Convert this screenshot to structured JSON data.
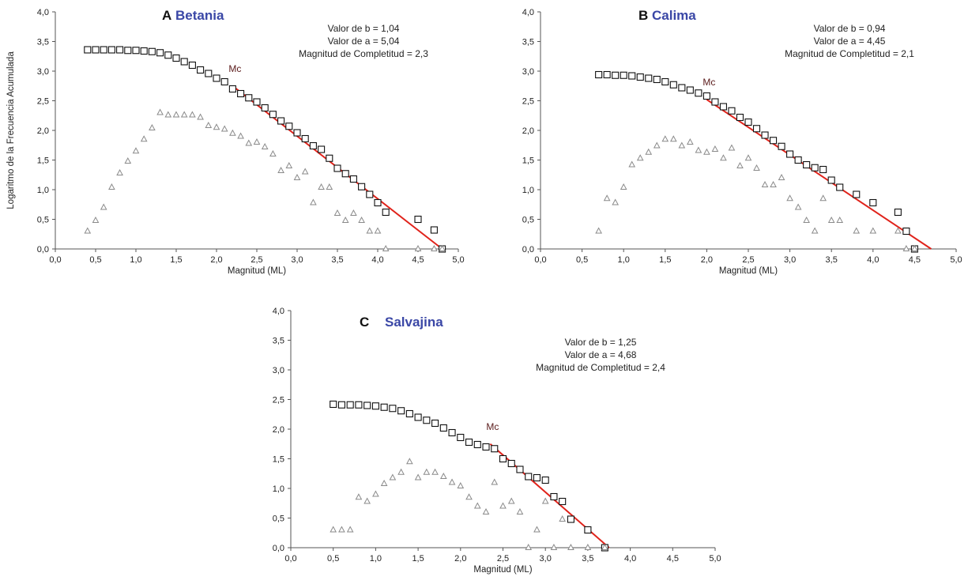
{
  "colors": {
    "fit_line": "#e0231b",
    "panel_name": "#3a47a6",
    "cumulative_marker": "#111111",
    "incremental_marker": "#8a8a8a"
  },
  "chart_data": [
    {
      "type": "scatter",
      "panel_letter": "A",
      "title": "Betania",
      "xlabel": "Magnitud (ML)",
      "ylabel": "Logaritmo de la Frecuencia Acumulada",
      "xlim": [
        0,
        5
      ],
      "ylim": [
        0,
        4
      ],
      "xticks": [
        "0,0",
        "0,5",
        "1,0",
        "1,5",
        "2,0",
        "2,5",
        "3,0",
        "3,5",
        "4,0",
        "4,5",
        "5,0"
      ],
      "yticks": [
        "0,0",
        "0,5",
        "1,0",
        "1,5",
        "2,0",
        "2,5",
        "3,0",
        "3,5",
        "4,0"
      ],
      "stats": [
        "Valor de b = 1,04",
        "Valor de a = 5,04",
        "Magnitud de Completitud = 2,3"
      ],
      "mc_label": "Mc",
      "grid": false,
      "series": [
        {
          "marker": "square",
          "x": [
            0.4,
            0.5,
            0.6,
            0.7,
            0.8,
            0.9,
            1.0,
            1.1,
            1.2,
            1.3,
            1.4,
            1.5,
            1.6,
            1.7,
            1.8,
            1.9,
            2.0,
            2.1,
            2.2,
            2.3,
            2.4,
            2.5,
            2.6,
            2.7,
            2.8,
            2.9,
            3.0,
            3.1,
            3.2,
            3.3,
            3.4,
            3.5,
            3.6,
            3.7,
            3.8,
            3.9,
            4.0,
            4.1,
            4.5,
            4.7,
            4.8
          ],
          "y": [
            3.36,
            3.36,
            3.36,
            3.36,
            3.36,
            3.35,
            3.35,
            3.34,
            3.33,
            3.31,
            3.27,
            3.22,
            3.16,
            3.1,
            3.02,
            2.96,
            2.88,
            2.82,
            2.7,
            2.62,
            2.55,
            2.48,
            2.38,
            2.27,
            2.16,
            2.07,
            1.96,
            1.86,
            1.74,
            1.68,
            1.53,
            1.36,
            1.27,
            1.18,
            1.05,
            0.92,
            0.78,
            0.62,
            0.5,
            0.32,
            0.0
          ]
        },
        {
          "marker": "triangle",
          "x": [
            0.4,
            0.5,
            0.6,
            0.7,
            0.8,
            0.9,
            1.0,
            1.1,
            1.2,
            1.3,
            1.4,
            1.5,
            1.6,
            1.7,
            1.8,
            1.9,
            2.0,
            2.1,
            2.2,
            2.3,
            2.4,
            2.5,
            2.6,
            2.7,
            2.8,
            2.9,
            3.0,
            3.1,
            3.2,
            3.3,
            3.4,
            3.5,
            3.6,
            3.7,
            3.8,
            3.9,
            4.0,
            4.1,
            4.5,
            4.7,
            4.8
          ],
          "y": [
            0.3,
            0.48,
            0.7,
            1.04,
            1.28,
            1.48,
            1.65,
            1.85,
            2.04,
            2.3,
            2.26,
            2.26,
            2.26,
            2.26,
            2.22,
            2.08,
            2.05,
            2.02,
            1.95,
            1.9,
            1.78,
            1.8,
            1.72,
            1.6,
            1.32,
            1.4,
            1.2,
            1.3,
            0.78,
            1.04,
            1.04,
            0.6,
            0.48,
            0.6,
            0.48,
            0.3,
            0.3,
            0.0,
            0.0,
            0.0,
            0.0
          ]
        }
      ],
      "fit_line": {
        "x": [
          2.2,
          4.8
        ],
        "y": [
          2.75,
          0.0
        ]
      }
    },
    {
      "type": "scatter",
      "panel_letter": "B",
      "title": "Calima",
      "xlabel": "Magnitud (ML)",
      "ylabel": "",
      "xlim": [
        0,
        5
      ],
      "ylim": [
        0,
        4
      ],
      "xticks": [
        "0,0",
        "0,5",
        "1,0",
        "1,5",
        "2,0",
        "2,5",
        "3,0",
        "3,5",
        "4,0",
        "4,5",
        "5,0"
      ],
      "yticks": [
        "0,0",
        "0,5",
        "1,0",
        "1,5",
        "2,0",
        "2,5",
        "3,0",
        "3,5",
        "4,0"
      ],
      "stats": [
        "Valor de b = 0,94",
        "Valor de a = 4,45",
        "Magnitud de Completitud = 2,1"
      ],
      "mc_label": "Mc",
      "grid": false,
      "series": [
        {
          "marker": "square",
          "x": [
            0.7,
            0.8,
            0.9,
            1.0,
            1.1,
            1.2,
            1.3,
            1.4,
            1.5,
            1.6,
            1.7,
            1.8,
            1.9,
            2.0,
            2.1,
            2.2,
            2.3,
            2.4,
            2.5,
            2.6,
            2.7,
            2.8,
            2.9,
            3.0,
            3.1,
            3.2,
            3.3,
            3.4,
            3.5,
            3.6,
            3.8,
            4.0,
            4.3,
            4.4,
            4.5
          ],
          "y": [
            2.94,
            2.94,
            2.93,
            2.93,
            2.92,
            2.9,
            2.88,
            2.86,
            2.82,
            2.77,
            2.72,
            2.68,
            2.63,
            2.58,
            2.48,
            2.4,
            2.33,
            2.22,
            2.14,
            2.03,
            1.92,
            1.83,
            1.73,
            1.6,
            1.5,
            1.42,
            1.37,
            1.34,
            1.16,
            1.04,
            0.92,
            0.78,
            0.62,
            0.3,
            0.0
          ]
        },
        {
          "marker": "triangle",
          "x": [
            0.7,
            0.8,
            0.9,
            1.0,
            1.1,
            1.2,
            1.3,
            1.4,
            1.5,
            1.6,
            1.7,
            1.8,
            1.9,
            2.0,
            2.1,
            2.2,
            2.3,
            2.4,
            2.5,
            2.6,
            2.7,
            2.8,
            2.9,
            3.0,
            3.1,
            3.2,
            3.3,
            3.4,
            3.5,
            3.6,
            3.8,
            4.0,
            4.3,
            4.4,
            4.5
          ],
          "y": [
            0.3,
            0.85,
            0.78,
            1.04,
            1.42,
            1.53,
            1.63,
            1.74,
            1.85,
            1.85,
            1.74,
            1.8,
            1.66,
            1.63,
            1.68,
            1.53,
            1.7,
            1.4,
            1.53,
            1.36,
            1.08,
            1.08,
            1.2,
            0.85,
            0.7,
            0.48,
            0.3,
            0.85,
            0.48,
            0.48,
            0.3,
            0.3,
            0.3,
            0.0,
            0.0
          ]
        }
      ],
      "fit_line": {
        "x": [
          2.0,
          4.7
        ],
        "y": [
          2.52,
          0.0
        ]
      }
    },
    {
      "type": "scatter",
      "panel_letter": "C",
      "title": "Salvajina",
      "xlabel": "Magnitud (ML)",
      "ylabel": "",
      "xlim": [
        0,
        5
      ],
      "ylim": [
        0,
        4
      ],
      "xticks": [
        "0,0",
        "0,5",
        "1,0",
        "1,5",
        "2,0",
        "2,5",
        "3,0",
        "3,5",
        "4,0",
        "4,5",
        "5,0"
      ],
      "yticks": [
        "0,0",
        "0,5",
        "1,0",
        "1,5",
        "2,0",
        "2,5",
        "3,0",
        "3,5",
        "4,0"
      ],
      "stats": [
        "Valor de b = 1,25",
        "Valor de a = 4,68",
        "Magnitud de Completitud = 2,4"
      ],
      "mc_label": "Mc",
      "grid": false,
      "series": [
        {
          "marker": "square",
          "x": [
            0.5,
            0.6,
            0.7,
            0.8,
            0.9,
            1.0,
            1.1,
            1.2,
            1.3,
            1.4,
            1.5,
            1.6,
            1.7,
            1.8,
            1.9,
            2.0,
            2.1,
            2.2,
            2.3,
            2.4,
            2.5,
            2.6,
            2.7,
            2.8,
            2.9,
            3.0,
            3.1,
            3.2,
            3.3,
            3.5,
            3.7
          ],
          "y": [
            2.42,
            2.41,
            2.41,
            2.41,
            2.4,
            2.39,
            2.37,
            2.35,
            2.31,
            2.26,
            2.2,
            2.15,
            2.1,
            2.02,
            1.94,
            1.86,
            1.78,
            1.74,
            1.7,
            1.67,
            1.5,
            1.42,
            1.32,
            1.2,
            1.18,
            1.14,
            0.86,
            0.78,
            0.48,
            0.3,
            0.0
          ]
        },
        {
          "marker": "triangle",
          "x": [
            0.5,
            0.6,
            0.7,
            0.8,
            0.9,
            1.0,
            1.1,
            1.2,
            1.3,
            1.4,
            1.5,
            1.6,
            1.7,
            1.8,
            1.9,
            2.0,
            2.1,
            2.2,
            2.3,
            2.4,
            2.5,
            2.6,
            2.7,
            2.8,
            2.9,
            3.0,
            3.1,
            3.2,
            3.3,
            3.5,
            3.7
          ],
          "y": [
            0.3,
            0.3,
            0.3,
            0.85,
            0.78,
            0.9,
            1.08,
            1.18,
            1.27,
            1.45,
            1.18,
            1.27,
            1.27,
            1.2,
            1.1,
            1.04,
            0.85,
            0.7,
            0.6,
            1.1,
            0.7,
            0.78,
            0.6,
            0.0,
            0.3,
            0.78,
            0.0,
            0.48,
            0.0,
            0.0,
            0.0
          ]
        }
      ],
      "fit_line": {
        "x": [
          2.35,
          3.75
        ],
        "y": [
          1.75,
          0.0
        ]
      }
    }
  ]
}
